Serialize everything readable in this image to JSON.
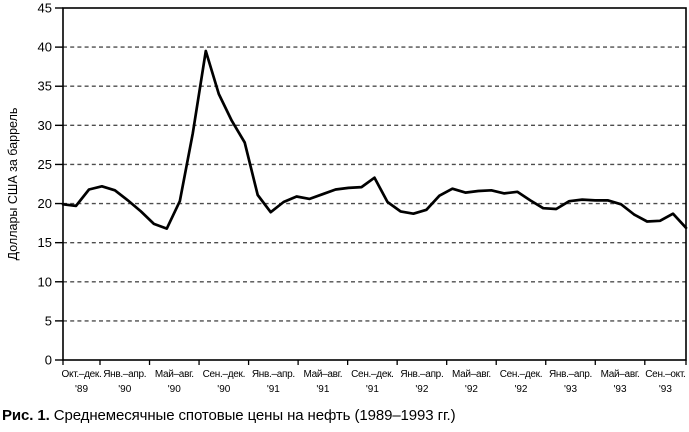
{
  "figure": {
    "caption_label": "Рис. 1.",
    "caption_text": "Среднемесячные спотовые цены на нефть (1989–1993 гг.)"
  },
  "chart_data": {
    "type": "line",
    "title": "",
    "xlabel": "",
    "ylabel": "Доллары США за баррель",
    "ylim": [
      0,
      45
    ],
    "yticks": [
      0,
      5,
      10,
      15,
      20,
      25,
      30,
      35,
      40,
      45
    ],
    "grid": "horizontal-dashed",
    "legend_position": "none",
    "background": "#ffffff",
    "line_color": "#000000",
    "grid_color": "#4d4d4d",
    "axis_color": "#000000",
    "x_categories": [
      {
        "period": "Окт.–дек.",
        "year": "'89",
        "months": 3
      },
      {
        "period": "Янв.–апр.",
        "year": "'90",
        "months": 4
      },
      {
        "period": "Май–авг.",
        "year": "'90",
        "months": 4
      },
      {
        "period": "Сен.–дек.",
        "year": "'90",
        "months": 4
      },
      {
        "period": "Янв.–апр.",
        "year": "'91",
        "months": 4
      },
      {
        "period": "Май–авг.",
        "year": "'91",
        "months": 4
      },
      {
        "period": "Сен.–дек.",
        "year": "'91",
        "months": 4
      },
      {
        "period": "Янв.–апр.",
        "year": "'92",
        "months": 4
      },
      {
        "period": "Май–авг.",
        "year": "'92",
        "months": 4
      },
      {
        "period": "Сен.–дек.",
        "year": "'92",
        "months": 4
      },
      {
        "period": "Янв.–апр.",
        "year": "'93",
        "months": 4
      },
      {
        "period": "Май–авг.",
        "year": "'93",
        "months": 4
      },
      {
        "period": "Сен.–окт.",
        "year": "'93",
        "months": 2
      }
    ],
    "x_unit": "month",
    "series": [
      {
        "name": "Среднемесячная спотовая цена на нефть, долл. США за баррель",
        "values": [
          19.9,
          19.7,
          21.8,
          22.2,
          21.7,
          20.4,
          19.0,
          17.4,
          16.8,
          20.3,
          29.0,
          39.5,
          34.0,
          30.6,
          27.8,
          21.1,
          18.9,
          20.2,
          20.9,
          20.6,
          21.2,
          21.8,
          22.0,
          22.1,
          23.3,
          20.2,
          19.0,
          18.7,
          19.2,
          21.0,
          21.9,
          21.4,
          21.6,
          21.7,
          21.3,
          21.5,
          20.4,
          19.4,
          19.3,
          20.3,
          20.5,
          20.4,
          20.4,
          19.9,
          18.6,
          17.7,
          17.8,
          18.7,
          16.9
        ]
      }
    ]
  }
}
